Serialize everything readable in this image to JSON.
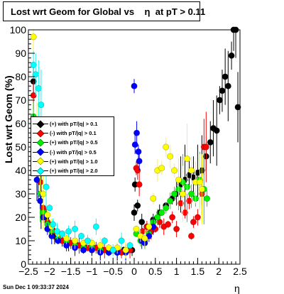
{
  "title": {
    "main": "Lost wrt Geom for Global vs",
    "symbol": "η",
    "cut": "at pT > 0.11"
  },
  "timestamp": "Sun Dec  1 09:33:37 2024",
  "chart_data": {
    "type": "scatter",
    "xlabel": "η",
    "ylabel": "Lost wrt Geom (%)",
    "xlim": [
      -2.5,
      2.5
    ],
    "ylim": [
      0,
      100
    ],
    "x_ticks": [
      "−2.5",
      "−2",
      "−1.5",
      "−1",
      "−0.5",
      "0",
      "0.5",
      "1",
      "1.5",
      "2",
      "2.5"
    ],
    "y_ticks": [
      "0",
      "10",
      "20",
      "30",
      "40",
      "50",
      "60",
      "70",
      "80",
      "90",
      "100"
    ],
    "legend_placement": "left-middle",
    "grid": false,
    "series": [
      {
        "name": "(+) with pT/|q| > 0.1",
        "color": "#000000",
        "points": [
          [
            -2.38,
            78
          ],
          [
            -2.33,
            52
          ],
          [
            -2.27,
            40
          ],
          [
            -2.2,
            30
          ],
          [
            -2.15,
            20
          ],
          [
            -2.08,
            20
          ],
          [
            -2.02,
            17
          ],
          [
            -1.95,
            14
          ],
          [
            -1.88,
            12
          ],
          [
            -1.8,
            11
          ],
          [
            -1.7,
            10
          ],
          [
            -1.55,
            9
          ],
          [
            -1.4,
            9
          ],
          [
            -1.2,
            8
          ],
          [
            -1.0,
            7
          ],
          [
            -0.8,
            7
          ],
          [
            -0.6,
            6
          ],
          [
            -0.4,
            5
          ],
          [
            -0.25,
            6
          ],
          [
            -0.05,
            6
          ],
          [
            0.0,
            22
          ],
          [
            0.02,
            34
          ],
          [
            0.08,
            25
          ],
          [
            0.18,
            18
          ],
          [
            0.3,
            16
          ],
          [
            0.45,
            19
          ],
          [
            0.6,
            22
          ],
          [
            0.75,
            25
          ],
          [
            0.9,
            28
          ],
          [
            1.0,
            30
          ],
          [
            1.1,
            34
          ],
          [
            1.2,
            36
          ],
          [
            1.3,
            38
          ],
          [
            1.4,
            37
          ],
          [
            1.5,
            39
          ],
          [
            1.6,
            40
          ],
          [
            1.7,
            46
          ],
          [
            1.8,
            52
          ],
          [
            1.87,
            58
          ],
          [
            1.95,
            57
          ],
          [
            2.02,
            70
          ],
          [
            2.08,
            74
          ],
          [
            2.15,
            80
          ],
          [
            2.22,
            76
          ],
          [
            2.3,
            89
          ],
          [
            2.35,
            100
          ],
          [
            2.4,
            100
          ],
          [
            2.45,
            67
          ]
        ]
      },
      {
        "name": "(-) with pT/|q| > 0.1",
        "color": "#ff0000",
        "points": [
          [
            -2.38,
            72
          ],
          [
            -2.3,
            50
          ],
          [
            -2.22,
            35
          ],
          [
            -2.15,
            24
          ],
          [
            -2.05,
            18
          ],
          [
            -1.9,
            14
          ],
          [
            -1.7,
            10
          ],
          [
            -1.5,
            9
          ],
          [
            -1.3,
            8
          ],
          [
            -1.1,
            7
          ],
          [
            -0.9,
            7
          ],
          [
            -0.7,
            6
          ],
          [
            -0.5,
            6
          ],
          [
            -0.3,
            5
          ],
          [
            -0.1,
            6
          ],
          [
            0.05,
            41
          ],
          [
            0.08,
            40
          ],
          [
            0.12,
            34
          ],
          [
            0.2,
            14
          ],
          [
            0.3,
            16
          ],
          [
            0.4,
            14
          ],
          [
            0.5,
            15
          ],
          [
            0.6,
            18
          ],
          [
            0.7,
            16
          ],
          [
            0.8,
            17
          ],
          [
            0.9,
            20
          ],
          [
            1.0,
            15
          ],
          [
            1.1,
            26
          ],
          [
            1.2,
            22
          ],
          [
            1.3,
            27
          ],
          [
            1.35,
            12
          ],
          [
            1.4,
            18
          ],
          [
            1.5,
            20
          ],
          [
            1.6,
            30
          ],
          [
            1.65,
            50
          ],
          [
            1.7,
            50
          ]
        ]
      },
      {
        "name": "(+) with pT/|q| > 0.5",
        "color": "#00ee00",
        "points": [
          [
            -2.38,
            63
          ],
          [
            -2.3,
            40
          ],
          [
            -2.22,
            30
          ],
          [
            -2.15,
            22
          ],
          [
            -2.05,
            17
          ],
          [
            -1.95,
            14
          ],
          [
            -1.8,
            11
          ],
          [
            -1.6,
            10
          ],
          [
            -1.4,
            8
          ],
          [
            -1.2,
            7
          ],
          [
            -1.0,
            7
          ],
          [
            -0.8,
            6
          ],
          [
            -0.6,
            5
          ],
          [
            -0.4,
            5
          ],
          [
            -0.2,
            5
          ],
          [
            0.05,
            13
          ],
          [
            0.15,
            10
          ],
          [
            0.25,
            10
          ],
          [
            0.35,
            13
          ],
          [
            0.45,
            18
          ],
          [
            0.55,
            20
          ],
          [
            0.65,
            22
          ],
          [
            0.75,
            24
          ],
          [
            0.85,
            27
          ],
          [
            0.95,
            30
          ],
          [
            1.05,
            32
          ],
          [
            1.15,
            35
          ],
          [
            1.25,
            33
          ],
          [
            1.35,
            30
          ],
          [
            1.45,
            28
          ],
          [
            1.55,
            36
          ],
          [
            1.65,
            32
          ],
          [
            1.72,
            28
          ]
        ]
      },
      {
        "name": "(-) with pT/|q| > 0.5",
        "color": "#0000ff",
        "points": [
          [
            -2.38,
            58
          ],
          [
            -2.3,
            36
          ],
          [
            -2.22,
            27
          ],
          [
            -2.15,
            20
          ],
          [
            -2.05,
            15
          ],
          [
            -1.95,
            12
          ],
          [
            -1.8,
            10
          ],
          [
            -1.6,
            8
          ],
          [
            -1.4,
            7
          ],
          [
            -1.2,
            6
          ],
          [
            -1.0,
            6
          ],
          [
            -0.8,
            5
          ],
          [
            -0.6,
            5
          ],
          [
            -0.4,
            5
          ],
          [
            -0.2,
            5
          ],
          [
            0.0,
            76
          ],
          [
            0.02,
            51
          ],
          [
            0.06,
            56
          ],
          [
            0.1,
            48
          ],
          [
            0.12,
            44
          ],
          [
            0.18,
            10
          ],
          [
            0.25,
            9
          ],
          [
            0.35,
            12
          ],
          [
            0.45,
            16
          ]
        ]
      },
      {
        "name": "(+) with pT/|q| > 1.0",
        "color": "#ffff00",
        "points": [
          [
            -2.38,
            97
          ],
          [
            -2.3,
            60
          ],
          [
            -2.22,
            42
          ],
          [
            -2.15,
            30
          ],
          [
            -2.05,
            21
          ],
          [
            -1.95,
            16
          ],
          [
            -1.8,
            13
          ],
          [
            -1.6,
            11
          ],
          [
            -1.4,
            10
          ],
          [
            -1.2,
            9
          ],
          [
            -1.0,
            9
          ],
          [
            -0.8,
            8
          ],
          [
            -0.6,
            7
          ],
          [
            -0.4,
            7
          ],
          [
            -0.2,
            6
          ],
          [
            0.05,
            15
          ],
          [
            0.15,
            12
          ],
          [
            0.25,
            11
          ],
          [
            0.35,
            16
          ],
          [
            0.45,
            28
          ],
          [
            0.55,
            40
          ],
          [
            0.65,
            41
          ],
          [
            0.75,
            50
          ],
          [
            0.85,
            46
          ],
          [
            0.95,
            40
          ],
          [
            1.05,
            36
          ],
          [
            1.15,
            30
          ],
          [
            1.25,
            45
          ],
          [
            1.35,
            40
          ],
          [
            1.45,
            35
          ],
          [
            1.55,
            35
          ],
          [
            1.6,
            32
          ]
        ]
      },
      {
        "name": "(+) with pT/|q| > 2.0",
        "color": "#00ffff",
        "points": [
          [
            -2.38,
            85
          ],
          [
            -2.33,
            81
          ],
          [
            -2.26,
            75
          ],
          [
            -2.2,
            68
          ],
          [
            -2.15,
            48
          ],
          [
            -2.08,
            33
          ],
          [
            -2.0,
            24
          ],
          [
            -1.92,
            17
          ],
          [
            -1.82,
            14
          ],
          [
            -1.7,
            13
          ],
          [
            -1.55,
            14
          ],
          [
            -1.4,
            15
          ],
          [
            -1.25,
            12
          ],
          [
            -1.1,
            10
          ],
          [
            -0.9,
            16
          ],
          [
            -0.7,
            10
          ],
          [
            -0.5,
            6
          ],
          [
            -0.3,
            10
          ],
          [
            -0.1,
            8
          ]
        ]
      }
    ]
  }
}
